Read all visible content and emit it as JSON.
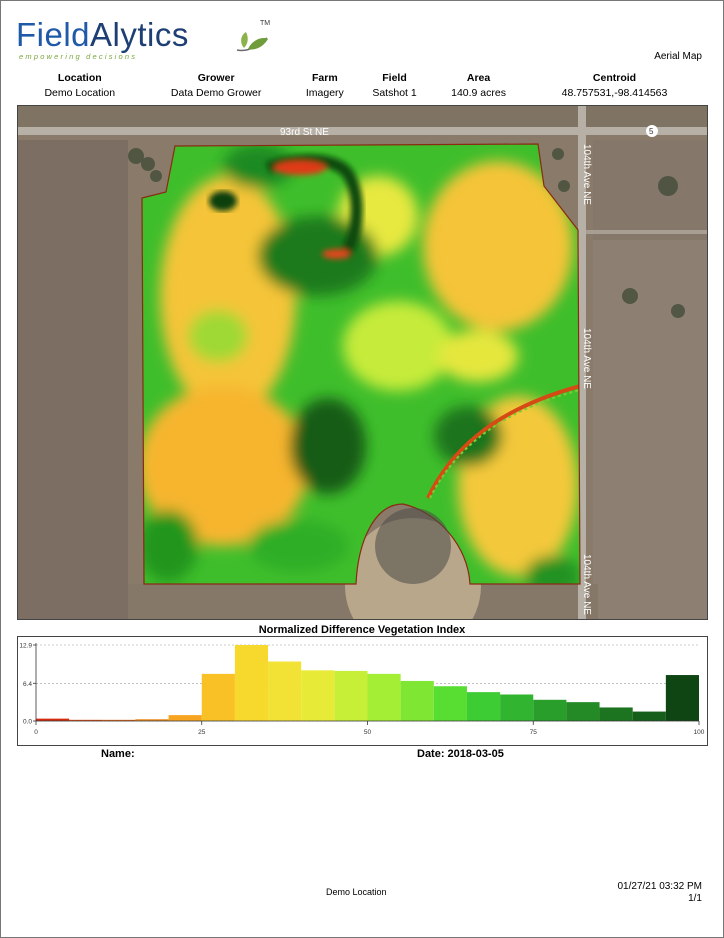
{
  "header": {
    "logo_field": "Field",
    "logo_alytics": "Alytics",
    "logo_tagline": "empowering decisions",
    "logo_tm": "TM",
    "doc_type": "Aerial Map"
  },
  "info": {
    "columns": [
      "Location",
      "Grower",
      "Farm",
      "Field",
      "Area",
      "Centroid"
    ],
    "values": [
      "Demo Location",
      "Data Demo Grower",
      "Imagery",
      "Satshot 1",
      "140.9 acres",
      "48.757531,-98.414563"
    ]
  },
  "map": {
    "road_top": "93rd St NE",
    "road_right": "104th Ave NE",
    "route_marker": "5"
  },
  "chart_data": {
    "type": "bar",
    "title": "Normalized Difference Vegetation Index",
    "xlabel": "",
    "ylabel": "",
    "xlim": [
      0,
      100
    ],
    "ylim": [
      0,
      12.9
    ],
    "x_ticks": [
      "0",
      "25",
      "50",
      "75",
      "100"
    ],
    "y_ticks": [
      "12.9",
      "6.4",
      "0.0"
    ],
    "bin_width": 5,
    "bin_starts": [
      0,
      5,
      10,
      15,
      20,
      25,
      30,
      35,
      40,
      45,
      50,
      55,
      60,
      65,
      70,
      75,
      80,
      85,
      90,
      95
    ],
    "values": [
      0.4,
      0.2,
      0.2,
      0.3,
      1.0,
      8.0,
      12.9,
      10.1,
      8.6,
      8.5,
      8.0,
      6.8,
      5.9,
      4.9,
      4.5,
      3.6,
      3.2,
      2.3,
      1.6,
      7.8
    ],
    "colors": [
      "#d62b10",
      "#dd4a12",
      "#e46516",
      "#ec8a1c",
      "#f7a421",
      "#f9c125",
      "#f7d82d",
      "#f2e236",
      "#e8ea38",
      "#c7ef38",
      "#a4ee36",
      "#7fe633",
      "#58dd33",
      "#3dcc33",
      "#31b530",
      "#2a9e2b",
      "#238a26",
      "#1c7420",
      "#165f1a",
      "#0f4512"
    ]
  },
  "footer": {
    "name_label": "Name:",
    "date_label": "Date: 2018-03-05",
    "center": "Demo Location",
    "timestamp": "01/27/21 03:32 PM",
    "page": "1/1"
  }
}
